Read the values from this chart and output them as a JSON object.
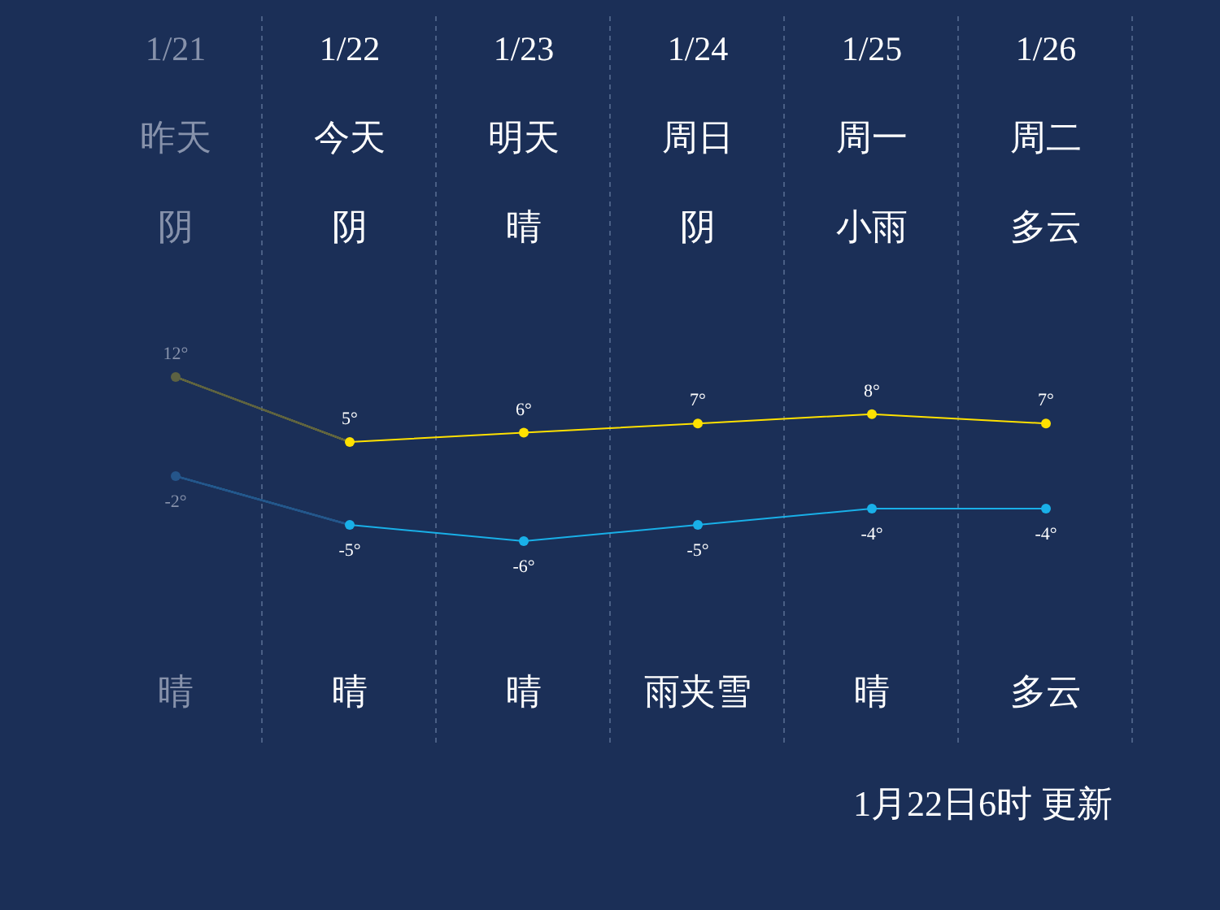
{
  "chart_data": [
    {
      "type": "line",
      "categories": [
        "1/21",
        "1/22",
        "1/23",
        "1/24",
        "1/25",
        "1/26"
      ],
      "series": [
        {
          "color": "#ffe100",
          "colors": [
            "#5c6142",
            "#ffe100",
            "#ffe100",
            "#ffe100",
            "#ffe100",
            "#ffe100"
          ],
          "values": [
            12,
            5,
            6,
            7,
            8,
            7
          ],
          "value_labels": [
            "12°",
            "5°",
            "6°",
            "7°",
            "8°",
            "7°"
          ]
        }
      ],
      "marker": "circle",
      "annotations": [
        "昨天",
        "今天",
        "明天",
        "周日",
        "周一",
        "周二",
        "阴",
        "阴",
        "晴",
        "阴",
        "小雨",
        "多云"
      ]
    },
    {
      "type": "line",
      "categories": [
        null,
        null,
        null,
        null,
        null,
        null
      ],
      "series": [
        {
          "color": "#19b0e8",
          "colors": [
            "#25558a",
            "#19b0e8",
            "#19b0e8",
            "#19b0e8",
            "#19b0e8",
            "#19b0e8"
          ],
          "values": [
            -2,
            -5,
            -6,
            -5,
            -4,
            -4
          ],
          "value_labels": [
            "-2°",
            "-5°",
            "-6°",
            "-5°",
            "-4°",
            "-4°"
          ]
        }
      ],
      "marker": "circle",
      "annotations": [
        "晴",
        "晴",
        "晴",
        "雨夹雪",
        "晴",
        "多云",
        "1月22日6时 更新"
      ]
    }
  ]
}
